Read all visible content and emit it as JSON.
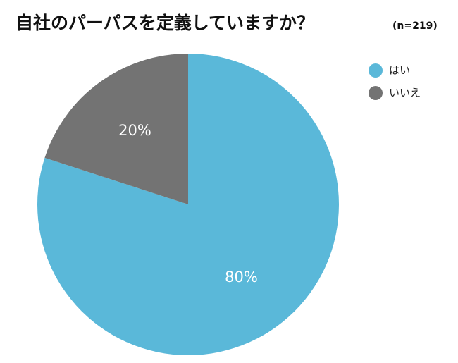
{
  "chart_data": {
    "type": "pie",
    "title": "自社のパーパスを定義していますか？",
    "subtitle": "(n=219)",
    "categories": [
      "はい",
      "いいえ"
    ],
    "values": [
      80,
      20
    ],
    "value_labels": [
      "80%",
      "20%"
    ],
    "colors": [
      "#5ab8d9",
      "#737373"
    ],
    "legend": "top-right"
  }
}
